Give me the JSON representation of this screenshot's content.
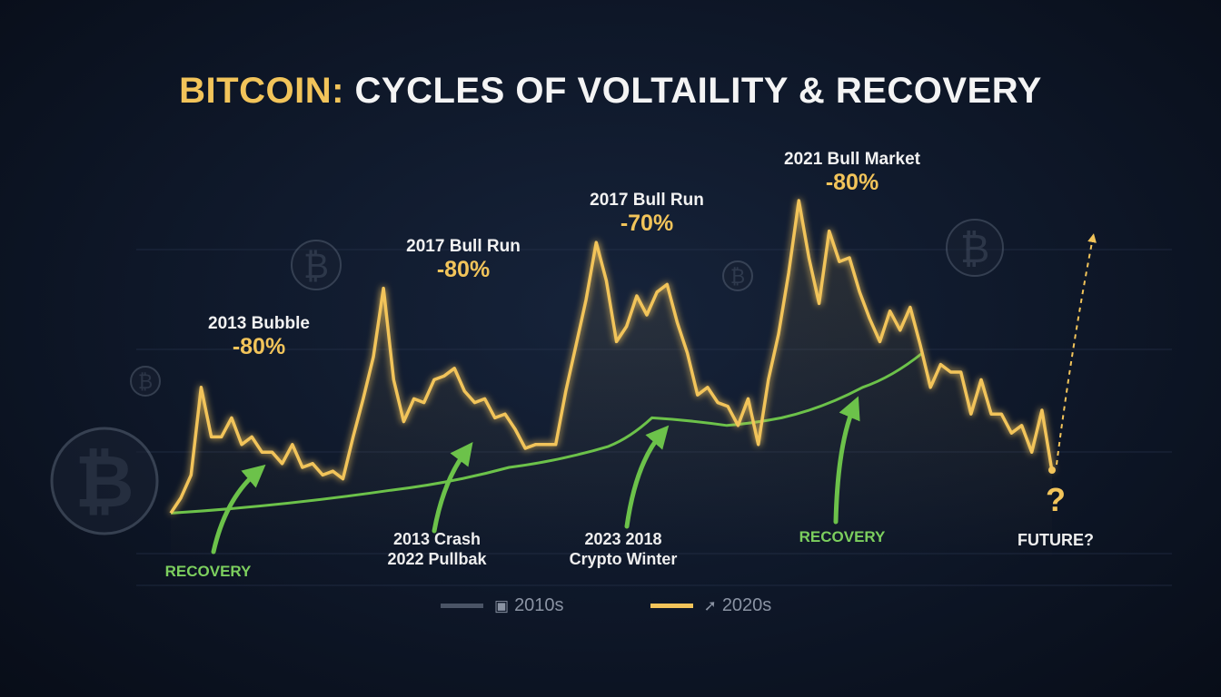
{
  "title": {
    "accent": "BITCOIN:",
    "rest": "CYCLES OF VOLTAILITY & RECOVERY"
  },
  "colors": {
    "price": "#f2c45a",
    "trend": "#6cc24a",
    "legend_2010s": "#4a5466",
    "background": "#0e1728"
  },
  "annotations": {
    "peak1": {
      "event": "2013 Bubble",
      "drop": "-80%"
    },
    "peak2": {
      "event": "2017 Bull Run",
      "drop": "-80%"
    },
    "peak3": {
      "event": "2017 Bull Run",
      "drop": "-70%"
    },
    "peak4": {
      "event": "2021 Bull Market",
      "drop": "-80%"
    },
    "recovery1": "RECOVERY",
    "recovery2": "RECOVERY",
    "crash1": [
      "2013 Crash",
      "2022 Pullbak"
    ],
    "crash2": [
      "2023 2018",
      "Crypto Winter"
    ],
    "future_mark": "?",
    "future": "FUTURE?"
  },
  "legend": [
    {
      "label": "2010s",
      "icon": "square-icon",
      "color": "#4a5466"
    },
    {
      "label": "2020s",
      "icon": "rocket-icon",
      "color": "#f2c45a"
    }
  ],
  "chart_data": {
    "type": "line",
    "title": "BITCOIN: CYCLES OF VOLTAILITY & RECOVERY",
    "xlabel": "",
    "ylabel": "",
    "grid": true,
    "legend_position": "bottom",
    "ylim": [
      0,
      100
    ],
    "series": [
      {
        "key": "price",
        "values": [
          13,
          17,
          23,
          46,
          33,
          33,
          38,
          31,
          33,
          29,
          29,
          26,
          31,
          25,
          26,
          23,
          24,
          22,
          33,
          43,
          54,
          72,
          48,
          37,
          43,
          42,
          48,
          49,
          51,
          45,
          42,
          43,
          38,
          39,
          35,
          30,
          31,
          31,
          31,
          45,
          57,
          69,
          84,
          74,
          58,
          62,
          70,
          65,
          71,
          73,
          63,
          55,
          44,
          46,
          42,
          41,
          36,
          43,
          31,
          48,
          60,
          76,
          95,
          80,
          68,
          87,
          79,
          80,
          71,
          64,
          58,
          66,
          61,
          67,
          57,
          46,
          52,
          50,
          50,
          39,
          48,
          39,
          39,
          34,
          36,
          29,
          40,
          24
        ]
      },
      {
        "key": "trend",
        "points": [
          [
            0,
            13
          ],
          [
            21.7,
            19
          ],
          [
            33.4,
            25
          ],
          [
            43.2,
            30.5
          ],
          [
            47.5,
            38
          ],
          [
            54.9,
            36
          ],
          [
            60.3,
            38
          ],
          [
            68.3,
            46
          ],
          [
            74.2,
            55
          ]
        ]
      }
    ]
  }
}
